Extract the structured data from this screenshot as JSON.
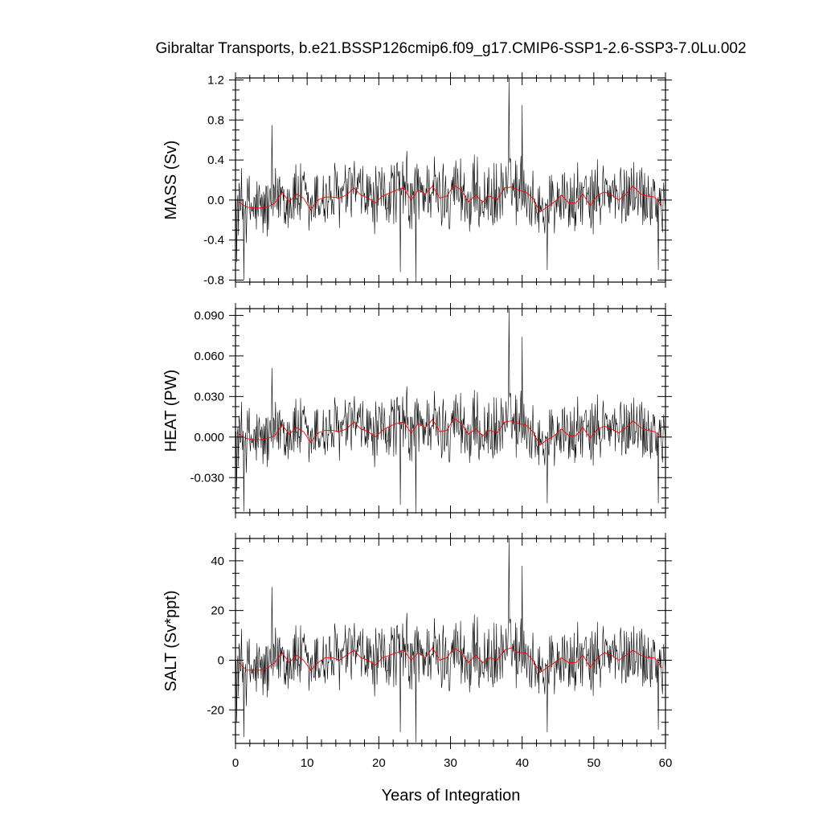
{
  "figure": {
    "title": "Gibraltar Transports, b.e21.BSSP126cmip6.f09_g17.CMIP6-SSP1-2.6-SSP3-7.0Lu.002",
    "xlabel": "Years of Integration"
  },
  "chart_data": [
    {
      "type": "line",
      "panel": "mass",
      "ylabel": "MASS (Sv)",
      "xlim": [
        0,
        60
      ],
      "ylim": [
        -0.82,
        1.22
      ],
      "xticks": [
        0,
        10,
        20,
        30,
        40,
        50,
        60
      ],
      "yticks": [
        -0.8,
        -0.4,
        0.0,
        0.4,
        0.8,
        1.2
      ],
      "ytick_labels": [
        "-0.8",
        "-0.4",
        "0.0",
        "0.4",
        "0.8",
        "1.2"
      ],
      "series": [
        {
          "kind": "monthly",
          "color": "#000000",
          "spikes": [
            [
              5.1,
              0.75
            ],
            [
              38.2,
              1.22
            ],
            [
              40.0,
              0.95
            ],
            [
              1.2,
              -0.8
            ],
            [
              25.2,
              -0.82
            ],
            [
              23.0,
              -0.72
            ],
            [
              43.5,
              -0.7
            ],
            [
              59.0,
              -0.7
            ],
            [
              0.2,
              -0.62
            ]
          ],
          "peak_amplitude": 0.42
        },
        {
          "kind": "annual",
          "color": "#ff0000",
          "x": [
            0.5,
            1.5,
            2.5,
            3.5,
            4.5,
            5.5,
            6.5,
            7.5,
            8.5,
            9.5,
            10.5,
            11.5,
            12.5,
            13.5,
            14.5,
            15.5,
            16.5,
            17.5,
            18.5,
            19.5,
            20.5,
            21.5,
            22.5,
            23.5,
            24.5,
            25.5,
            26.5,
            27.5,
            28.5,
            29.5,
            30.5,
            31.5,
            32.5,
            33.5,
            34.5,
            35.5,
            36.5,
            37.5,
            38.5,
            39.5,
            40.5,
            41.5,
            42.5,
            43.5,
            44.5,
            45.5,
            46.5,
            47.5,
            48.5,
            49.5,
            50.5,
            51.5,
            52.5,
            53.5,
            54.5,
            55.5,
            56.5,
            57.5,
            58.5,
            59.5
          ],
          "values": [
            -0.02,
            -0.07,
            -0.08,
            -0.08,
            -0.07,
            -0.03,
            0.08,
            -0.02,
            0.06,
            0.02,
            -0.1,
            0.0,
            0.03,
            0.03,
            0.02,
            0.05,
            0.12,
            0.05,
            0.02,
            -0.03,
            0.04,
            0.07,
            0.1,
            0.12,
            0.0,
            0.1,
            0.06,
            0.14,
            0.02,
            0.04,
            0.15,
            0.1,
            -0.02,
            0.05,
            -0.02,
            0.04,
            0.0,
            0.12,
            0.13,
            0.1,
            0.08,
            0.02,
            -0.12,
            -0.07,
            -0.02,
            0.05,
            -0.03,
            -0.03,
            0.06,
            -0.06,
            0.05,
            0.08,
            0.05,
            0.0,
            0.06,
            0.14,
            0.06,
            0.04,
            0.03,
            -0.06
          ]
        }
      ]
    },
    {
      "type": "line",
      "panel": "heat",
      "ylabel": "HEAT (PW)",
      "xlim": [
        0,
        60
      ],
      "ylim": [
        -0.056,
        0.095
      ],
      "xticks": [
        0,
        10,
        20,
        30,
        40,
        50,
        60
      ],
      "yticks": [
        -0.03,
        0.0,
        0.03,
        0.06,
        0.09
      ],
      "ytick_labels": [
        "-0.030",
        "0.000",
        "0.030",
        "0.060",
        "0.090"
      ],
      "series": [
        {
          "kind": "monthly",
          "color": "#000000",
          "spikes": [
            [
              5.1,
              0.051
            ],
            [
              38.2,
              0.095
            ],
            [
              40.0,
              0.074
            ],
            [
              1.2,
              -0.055
            ],
            [
              25.2,
              -0.056
            ],
            [
              23.0,
              -0.05
            ],
            [
              43.5,
              -0.049
            ],
            [
              59.0,
              -0.049
            ],
            [
              0.2,
              -0.04
            ]
          ],
          "peak_amplitude": 0.03
        },
        {
          "kind": "annual",
          "color": "#ff0000",
          "x": [
            0.5,
            1.5,
            2.5,
            3.5,
            4.5,
            5.5,
            6.5,
            7.5,
            8.5,
            9.5,
            10.5,
            11.5,
            12.5,
            13.5,
            14.5,
            15.5,
            16.5,
            17.5,
            18.5,
            19.5,
            20.5,
            21.5,
            22.5,
            23.5,
            24.5,
            25.5,
            26.5,
            27.5,
            28.5,
            29.5,
            30.5,
            31.5,
            32.5,
            33.5,
            34.5,
            35.5,
            36.5,
            37.5,
            38.5,
            39.5,
            40.5,
            41.5,
            42.5,
            43.5,
            44.5,
            45.5,
            46.5,
            47.5,
            48.5,
            49.5,
            50.5,
            51.5,
            52.5,
            53.5,
            54.5,
            55.5,
            56.5,
            57.5,
            58.5,
            59.5
          ],
          "values": [
            0.002,
            -0.001,
            -0.002,
            -0.002,
            -0.001,
            0.001,
            0.009,
            0.002,
            0.007,
            0.004,
            -0.004,
            0.003,
            0.005,
            0.005,
            0.004,
            0.006,
            0.011,
            0.006,
            0.004,
            0.0,
            0.005,
            0.008,
            0.01,
            0.011,
            0.003,
            0.01,
            0.007,
            0.013,
            0.004,
            0.005,
            0.014,
            0.01,
            0.002,
            0.006,
            0.001,
            0.005,
            0.003,
            0.011,
            0.012,
            0.01,
            0.009,
            0.004,
            -0.006,
            -0.002,
            0.001,
            0.006,
            0.001,
            0.001,
            0.007,
            -0.001,
            0.006,
            0.008,
            0.006,
            0.003,
            0.007,
            0.012,
            0.007,
            0.005,
            0.004,
            0.0
          ]
        }
      ]
    },
    {
      "type": "line",
      "panel": "salt",
      "ylabel": "SALT (Sv*ppt)",
      "xlim": [
        0,
        60
      ],
      "ylim": [
        -33.5,
        49
      ],
      "xticks": [
        0,
        10,
        20,
        30,
        40,
        50,
        60
      ],
      "xtick_labels": [
        "0",
        "10",
        "20",
        "30",
        "40",
        "50",
        "60"
      ],
      "yticks": [
        -20,
        0,
        20,
        40
      ],
      "ytick_labels": [
        "-20",
        "0",
        "20",
        "40"
      ],
      "series": [
        {
          "kind": "monthly",
          "color": "#000000",
          "spikes": [
            [
              5.1,
              29.5
            ],
            [
              38.2,
              49
            ],
            [
              40.0,
              38
            ],
            [
              1.2,
              -31
            ],
            [
              25.2,
              -33
            ],
            [
              23.0,
              -29
            ],
            [
              43.5,
              -29
            ],
            [
              59.0,
              -28
            ],
            [
              0.2,
              -25
            ]
          ],
          "peak_amplitude": 17
        },
        {
          "kind": "annual",
          "color": "#ff0000",
          "x": [
            0.5,
            1.5,
            2.5,
            3.5,
            4.5,
            5.5,
            6.5,
            7.5,
            8.5,
            9.5,
            10.5,
            11.5,
            12.5,
            13.5,
            14.5,
            15.5,
            16.5,
            17.5,
            18.5,
            19.5,
            20.5,
            21.5,
            22.5,
            23.5,
            24.5,
            25.5,
            26.5,
            27.5,
            28.5,
            29.5,
            30.5,
            31.5,
            32.5,
            33.5,
            34.5,
            35.5,
            36.5,
            37.5,
            38.5,
            39.5,
            40.5,
            41.5,
            42.5,
            43.5,
            44.5,
            45.5,
            46.5,
            47.5,
            48.5,
            49.5,
            50.5,
            51.5,
            52.5,
            53.5,
            54.5,
            55.5,
            56.5,
            57.5,
            58.5,
            59.5
          ],
          "values": [
            -1,
            -4,
            -4,
            -4,
            -3,
            -1,
            3,
            -1,
            2,
            0,
            -4,
            -1,
            1,
            1,
            0,
            2,
            4,
            1,
            0,
            -2,
            1,
            2,
            3,
            4,
            0,
            3,
            1,
            5,
            0,
            1,
            5,
            3,
            -1,
            2,
            -1,
            1,
            0,
            4,
            5,
            3,
            3,
            0,
            -5,
            -3,
            -1,
            1,
            -1,
            -1,
            2,
            -3,
            1,
            3,
            2,
            0,
            2,
            4,
            2,
            1,
            1,
            -3
          ]
        }
      ]
    }
  ]
}
